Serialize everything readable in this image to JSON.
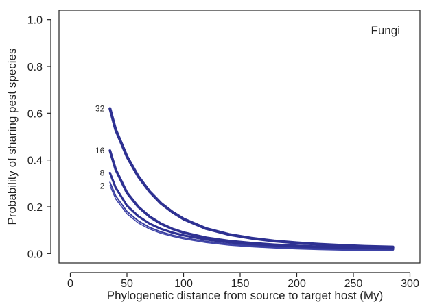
{
  "chart_data": {
    "type": "line",
    "title": "",
    "panel_label": "Fungi",
    "xlabel": "Phylogenetic distance from source to target host (My)",
    "ylabel": "Probability of sharing pest species",
    "xlim": [
      -10,
      310
    ],
    "ylim": [
      -0.04,
      1.04
    ],
    "xticks": [
      0,
      50,
      100,
      150,
      200,
      250,
      300
    ],
    "xtick_labels": [
      "0",
      "50",
      "100",
      "150",
      "200",
      "250",
      "300"
    ],
    "yticks": [
      0.0,
      0.2,
      0.4,
      0.6,
      0.8,
      1.0
    ],
    "ytick_labels": [
      "0.0",
      "0.2",
      "0.4",
      "0.6",
      "0.8",
      "1.0"
    ],
    "grid": false,
    "series": [
      {
        "name": "32",
        "color": "#2E3192",
        "stroke_width": 4.2,
        "x": [
          35,
          40,
          50,
          60,
          70,
          80,
          90,
          100,
          120,
          140,
          160,
          180,
          200,
          220,
          240,
          260,
          285
        ],
        "y": [
          0.62,
          0.53,
          0.415,
          0.33,
          0.265,
          0.215,
          0.178,
          0.148,
          0.107,
          0.082,
          0.066,
          0.054,
          0.046,
          0.04,
          0.035,
          0.031,
          0.028
        ]
      },
      {
        "name": "16",
        "color": "#2E3192",
        "stroke_width": 3.8,
        "x": [
          35,
          40,
          50,
          60,
          70,
          80,
          90,
          100,
          120,
          140,
          160,
          180,
          200,
          220,
          240,
          260,
          285
        ],
        "y": [
          0.44,
          0.36,
          0.26,
          0.2,
          0.158,
          0.128,
          0.106,
          0.09,
          0.068,
          0.054,
          0.045,
          0.038,
          0.033,
          0.029,
          0.026,
          0.023,
          0.021
        ]
      },
      {
        "name": "8",
        "color": "#2E3192",
        "stroke_width": 3.2,
        "x": [
          35,
          40,
          50,
          60,
          70,
          80,
          90,
          100,
          120,
          140,
          160,
          180,
          200,
          220,
          240,
          260,
          285
        ],
        "y": [
          0.345,
          0.282,
          0.205,
          0.16,
          0.128,
          0.106,
          0.09,
          0.078,
          0.06,
          0.048,
          0.039,
          0.033,
          0.028,
          0.025,
          0.022,
          0.02,
          0.018
        ]
      },
      {
        "name": "",
        "color": "#3A3FA0",
        "stroke_width": 2.0,
        "x": [
          35,
          40,
          50,
          60,
          70,
          80,
          90,
          100,
          120,
          140,
          160,
          180,
          200,
          220,
          240,
          260,
          285
        ],
        "y": [
          0.305,
          0.247,
          0.18,
          0.14,
          0.112,
          0.093,
          0.079,
          0.068,
          0.052,
          0.041,
          0.033,
          0.028,
          0.023,
          0.02,
          0.018,
          0.016,
          0.014
        ]
      },
      {
        "name": "2",
        "color": "#3E43A8",
        "stroke_width": 1.5,
        "x": [
          35,
          40,
          50,
          60,
          70,
          80,
          90,
          100,
          120,
          140,
          160,
          180,
          200,
          220,
          240,
          260,
          285
        ],
        "y": [
          0.29,
          0.234,
          0.17,
          0.131,
          0.105,
          0.087,
          0.074,
          0.063,
          0.047,
          0.036,
          0.029,
          0.024,
          0.02,
          0.017,
          0.015,
          0.013,
          0.012
        ]
      }
    ]
  }
}
